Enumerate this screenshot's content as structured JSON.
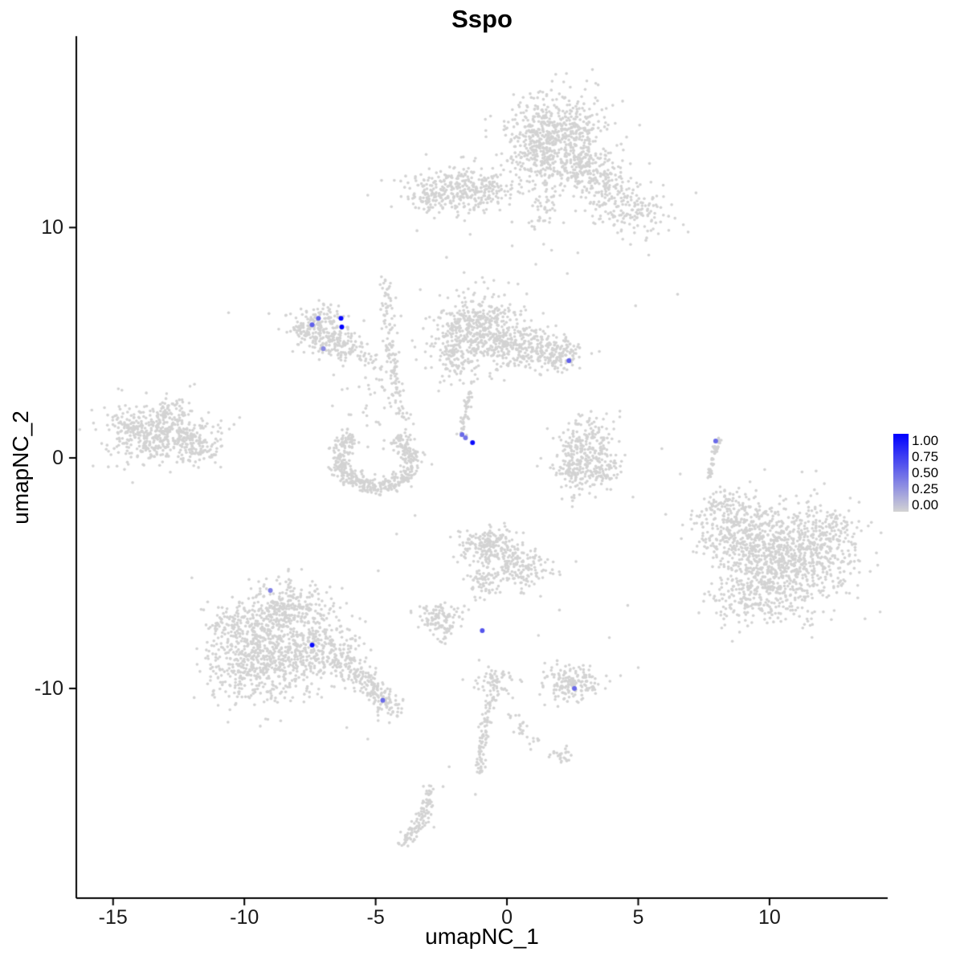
{
  "chart_data": {
    "type": "scatter",
    "title": "Sspo",
    "xlabel": "umapNC_1",
    "ylabel": "umapNC_2",
    "xlim": [
      -16.4,
      14.5
    ],
    "ylim": [
      -19.1,
      18.3
    ],
    "x_ticks": [
      "-15",
      "-10",
      "-5",
      "0",
      "5",
      "10"
    ],
    "x_tick_values": [
      -15,
      -10,
      -5,
      0,
      5,
      10
    ],
    "y_ticks": [
      "10",
      "0",
      "-10"
    ],
    "y_tick_values": [
      10,
      0,
      -10
    ],
    "grid": false,
    "axis_style": "classic-left-bottom-only",
    "background_color": "#FFFFFF",
    "point_color_low": "#D3D3D3",
    "point_color_high": "#0000FF",
    "legend": {
      "position": "right",
      "labels": [
        "1.00",
        "0.75",
        "0.50",
        "0.25",
        "0.00"
      ],
      "low_color": "#D3D3D3",
      "high_color": "#0000FF"
    },
    "gray_layers": [
      {
        "name": "cluster-top-main",
        "type": "blob",
        "cx": 1.9,
        "cy": 14.1,
        "sx": 0.95,
        "sy": 0.9,
        "n": 560
      },
      {
        "name": "cluster-top-lower",
        "type": "blob",
        "cx": 2.9,
        "cy": 12.5,
        "sx": 0.65,
        "sy": 0.5,
        "n": 170
      },
      {
        "name": "cluster-top-left-lobe",
        "type": "blob",
        "cx": 1.1,
        "cy": 13.0,
        "sx": 0.45,
        "sy": 0.6,
        "n": 110
      },
      {
        "name": "cluster-top-right-arm",
        "type": "blob",
        "cx": 4.7,
        "cy": 10.8,
        "sx": 0.75,
        "sy": 0.6,
        "n": 150
      },
      {
        "name": "cluster-top-right-arm-2",
        "type": "blob",
        "cx": 3.8,
        "cy": 11.7,
        "sx": 0.45,
        "sy": 0.4,
        "n": 70
      },
      {
        "name": "cluster-top-tail",
        "type": "blob",
        "cx": 1.4,
        "cy": 10.9,
        "sx": 0.3,
        "sy": 0.8,
        "n": 50
      },
      {
        "name": "cluster-upper-mid",
        "type": "blob",
        "cx": -1.5,
        "cy": 11.7,
        "sx": 1.0,
        "sy": 0.48,
        "n": 320
      },
      {
        "name": "cluster-upper-mid-left",
        "type": "blob",
        "cx": -3.0,
        "cy": 11.3,
        "sx": 0.4,
        "sy": 0.3,
        "n": 70
      },
      {
        "name": "cluster-far-left",
        "type": "blob",
        "cx": -13.4,
        "cy": 1.0,
        "sx": 0.95,
        "sy": 0.58,
        "n": 430
      },
      {
        "name": "cluster-far-left-east",
        "type": "blob",
        "cx": -11.9,
        "cy": 0.5,
        "sx": 0.5,
        "sy": 0.42,
        "n": 110
      },
      {
        "name": "cluster-far-left-top",
        "type": "blob",
        "cx": -12.7,
        "cy": 2.1,
        "sx": 0.55,
        "sy": 0.33,
        "n": 60
      },
      {
        "name": "cluster-mid-left",
        "type": "blob",
        "cx": -7.2,
        "cy": 5.55,
        "sx": 0.58,
        "sy": 0.5,
        "n": 230
      },
      {
        "name": "cluster-mid-left-lobe",
        "type": "blob",
        "cx": -6.2,
        "cy": 4.85,
        "sx": 0.42,
        "sy": 0.38,
        "n": 90
      },
      {
        "name": "cluster-horseshoe",
        "type": "ring",
        "cx": -5.0,
        "cy": -0.05,
        "rx": 1.4,
        "ry": 1.2,
        "a1": 125,
        "a2": 415,
        "spread": 0.16,
        "n": 470
      },
      {
        "name": "horseshoe-scatter-above",
        "type": "blob",
        "cx": -4.8,
        "cy": 2.6,
        "sx": 0.75,
        "sy": 0.8,
        "n": 45
      },
      {
        "name": "cluster-central-west",
        "type": "blob",
        "cx": -1.1,
        "cy": 5.6,
        "sx": 0.85,
        "sy": 0.75,
        "n": 470
      },
      {
        "name": "cluster-central-mid",
        "type": "blob",
        "cx": 0.7,
        "cy": 4.7,
        "sx": 0.85,
        "sy": 0.5,
        "n": 250
      },
      {
        "name": "cluster-central-east",
        "type": "blob",
        "cx": 2.1,
        "cy": 4.4,
        "sx": 0.45,
        "sy": 0.35,
        "n": 90
      },
      {
        "name": "cluster-central-sw",
        "type": "blob",
        "cx": -1.9,
        "cy": 4.4,
        "sx": 0.4,
        "sy": 0.5,
        "n": 90
      },
      {
        "name": "cluster-mid-right-n",
        "type": "blob",
        "cx": 3.1,
        "cy": 0.7,
        "sx": 0.55,
        "sy": 0.6,
        "n": 180
      },
      {
        "name": "cluster-mid-right-sw",
        "type": "blob",
        "cx": 2.5,
        "cy": -0.5,
        "sx": 0.4,
        "sy": 0.5,
        "n": 120
      },
      {
        "name": "cluster-mid-right-se",
        "type": "blob",
        "cx": 3.6,
        "cy": -0.6,
        "sx": 0.35,
        "sy": 0.45,
        "n": 80
      },
      {
        "name": "cluster-right-main",
        "type": "blob",
        "cx": 10.7,
        "cy": -4.3,
        "sx": 1.25,
        "sy": 1.15,
        "n": 850
      },
      {
        "name": "cluster-right-nw",
        "type": "blob",
        "cx": 8.7,
        "cy": -3.2,
        "sx": 0.8,
        "sy": 0.75,
        "n": 270
      },
      {
        "name": "cluster-right-s",
        "type": "blob",
        "cx": 9.4,
        "cy": -6.0,
        "sx": 0.9,
        "sy": 0.6,
        "n": 210
      },
      {
        "name": "cluster-right-n-tail",
        "type": "blob",
        "cx": 8.2,
        "cy": -2.0,
        "sx": 0.5,
        "sy": 0.4,
        "n": 60
      },
      {
        "name": "cluster-right-e",
        "type": "blob",
        "cx": 12.3,
        "cy": -3.2,
        "sx": 0.5,
        "sy": 0.6,
        "n": 90
      },
      {
        "name": "cluster-bottom-left-main",
        "type": "blob",
        "cx": -9.3,
        "cy": -8.7,
        "sx": 1.05,
        "sy": 0.95,
        "n": 640
      },
      {
        "name": "cluster-bottom-left-top",
        "type": "blob",
        "cx": -8.4,
        "cy": -6.5,
        "sx": 0.8,
        "sy": 0.6,
        "n": 280
      },
      {
        "name": "cluster-bottom-left-east",
        "type": "blob",
        "cx": -7.0,
        "cy": -8.2,
        "sx": 0.7,
        "sy": 0.7,
        "n": 240
      },
      {
        "name": "cluster-bottom-left-west",
        "type": "blob",
        "cx": -10.4,
        "cy": -7.2,
        "sx": 0.5,
        "sy": 0.5,
        "n": 100
      },
      {
        "name": "cluster-center-bottom",
        "type": "blob",
        "cx": -0.7,
        "cy": -3.9,
        "sx": 0.6,
        "sy": 0.5,
        "n": 210
      },
      {
        "name": "cluster-center-bottom-se",
        "type": "blob",
        "cx": 0.5,
        "cy": -4.9,
        "sx": 0.55,
        "sy": 0.45,
        "n": 140
      },
      {
        "name": "cluster-center-bottom-s",
        "type": "blob",
        "cx": -0.9,
        "cy": -5.4,
        "sx": 0.3,
        "sy": 0.35,
        "n": 55
      },
      {
        "name": "cluster-small-left",
        "type": "blob",
        "cx": -2.6,
        "cy": -7.0,
        "sx": 0.42,
        "sy": 0.42,
        "n": 120
      },
      {
        "name": "cluster-oval",
        "type": "blob",
        "cx": 2.5,
        "cy": -9.75,
        "sx": 0.55,
        "sy": 0.38,
        "n": 170
      },
      {
        "name": "bottom-strand-head",
        "type": "blob",
        "cx": -0.5,
        "cy": -9.7,
        "sx": 0.42,
        "sy": 0.35,
        "n": 65
      },
      {
        "name": "bottom-diag-clump",
        "type": "blob",
        "cx": 2.1,
        "cy": -12.9,
        "sx": 0.25,
        "sy": 0.2,
        "n": 25
      },
      {
        "name": "strand-center-vertical",
        "type": "strand",
        "x1": -4.55,
        "y1": 7.7,
        "x2": -3.95,
        "y2": 1.6,
        "bx": -0.4,
        "by": 0.3,
        "jitter": 0.13,
        "n": 130
      },
      {
        "name": "strand-to-expressing",
        "type": "strand",
        "x1": -1.35,
        "y1": 3.3,
        "x2": -1.75,
        "y2": 1.0,
        "bx": 0.05,
        "by": 0,
        "jitter": 0.08,
        "n": 45
      },
      {
        "name": "strand-right",
        "type": "strand",
        "x1": 8.1,
        "y1": 0.8,
        "x2": 7.7,
        "y2": -0.9,
        "bx": -0.12,
        "by": 0,
        "jitter": 0.06,
        "n": 55
      },
      {
        "name": "strand-bottom-left-tail",
        "type": "strand",
        "x1": -6.5,
        "y1": -8.9,
        "x2": -4.3,
        "y2": -11.0,
        "bx": 0.25,
        "by": 0.35,
        "jitter": 0.27,
        "n": 210
      },
      {
        "name": "strand-bottom-center",
        "type": "strand",
        "x1": -0.55,
        "y1": -10.3,
        "x2": -1.0,
        "y2": -13.7,
        "bx": -0.3,
        "by": 0,
        "jitter": 0.11,
        "n": 85
      },
      {
        "name": "strand-bottom-small",
        "type": "strand",
        "x1": -2.95,
        "y1": -14.3,
        "x2": -3.9,
        "y2": -16.7,
        "bx": 0.4,
        "by": -0.3,
        "jitter": 0.16,
        "n": 110
      },
      {
        "name": "strand-bottom-diag",
        "type": "strand",
        "x1": 0.2,
        "y1": -11.2,
        "x2": 0.95,
        "y2": -12.4,
        "bx": 0,
        "by": 0,
        "jitter": 0.14,
        "n": 25
      },
      {
        "name": "strand-midleft-link",
        "type": "strand",
        "x1": -5.8,
        "y1": 4.5,
        "x2": -4.8,
        "y2": 3.9,
        "bx": 0,
        "by": 0,
        "jitter": 0.18,
        "n": 20
      }
    ],
    "sparse_points": [
      [
        -10.6,
        6.3
      ],
      [
        -2.3,
        8.7
      ],
      [
        -1.4,
        9.7
      ],
      [
        0.2,
        9.2
      ],
      [
        1.1,
        8.4
      ],
      [
        -0.5,
        7.7
      ],
      [
        -3.3,
        7.3
      ],
      [
        2.3,
        8.0
      ],
      [
        2.7,
        8.9
      ],
      [
        6.5,
        7.1
      ],
      [
        5.4,
        8.8
      ],
      [
        6.9,
        9.8
      ],
      [
        6.4,
        10.4
      ],
      [
        4.9,
        6.6
      ],
      [
        -11.9,
        3.2
      ],
      [
        -14.8,
        3.0
      ],
      [
        -10.9,
        -0.4
      ],
      [
        4.8,
        -1.7
      ],
      [
        4.6,
        -6.4
      ],
      [
        2.0,
        -6.6
      ],
      [
        1.2,
        -7.7
      ],
      [
        3.9,
        -7.8
      ],
      [
        5.0,
        -9.1
      ],
      [
        1.9,
        -12.8
      ],
      [
        -1.2,
        -14.6
      ],
      [
        -2.2,
        -13.4
      ],
      [
        -5.3,
        -12.2
      ],
      [
        -6.1,
        -11.7
      ],
      [
        -12.0,
        -5.2
      ],
      [
        -11.4,
        -9.8
      ],
      [
        -4.9,
        -4.9
      ],
      [
        -4.2,
        -3.3
      ],
      [
        -3.5,
        -2.5
      ],
      [
        -6.6,
        3.6
      ],
      [
        -3.1,
        3.9
      ],
      [
        -2.6,
        2.9
      ],
      [
        5.9,
        0.4
      ],
      [
        6.6,
        -0.7
      ],
      [
        4.4,
        12.9
      ],
      [
        3.3,
        10.2
      ],
      [
        0.1,
        11.0
      ],
      [
        -4.4,
        10.9
      ],
      [
        -5.3,
        11.4
      ],
      [
        7.2,
        11.5
      ],
      [
        -0.2,
        13.2
      ],
      [
        -1.2,
        13.0
      ]
    ],
    "expressing_cells": [
      {
        "x": -7.42,
        "y": 5.78,
        "value": 0.55
      },
      {
        "x": -7.18,
        "y": 6.06,
        "value": 0.55
      },
      {
        "x": -6.32,
        "y": 6.06,
        "value": 0.95
      },
      {
        "x": -6.29,
        "y": 5.68,
        "value": 1.0
      },
      {
        "x": -6.99,
        "y": 4.74,
        "value": 0.35
      },
      {
        "x": 2.36,
        "y": 4.22,
        "value": 0.55
      },
      {
        "x": -1.71,
        "y": 1.01,
        "value": 0.5
      },
      {
        "x": -1.58,
        "y": 0.87,
        "value": 0.45
      },
      {
        "x": -1.31,
        "y": 0.66,
        "value": 0.95
      },
      {
        "x": 7.95,
        "y": 0.73,
        "value": 0.5
      },
      {
        "x": -9.01,
        "y": -5.75,
        "value": 0.4
      },
      {
        "x": -7.42,
        "y": -8.12,
        "value": 0.95
      },
      {
        "x": -4.73,
        "y": -10.52,
        "value": 0.5
      },
      {
        "x": -0.94,
        "y": -7.49,
        "value": 0.6
      },
      {
        "x": 2.57,
        "y": -10.0,
        "value": 0.5
      }
    ]
  }
}
